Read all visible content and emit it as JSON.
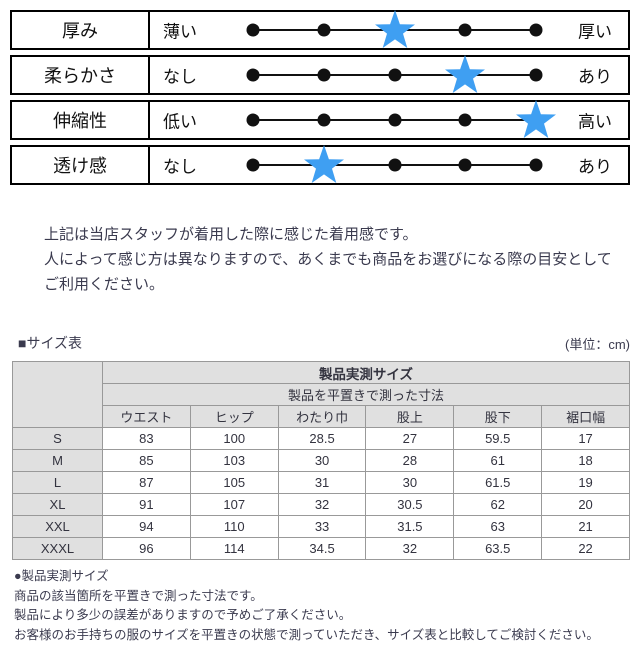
{
  "feel_chart": {
    "scale_points": 5,
    "star_color": "#3f9ff2",
    "dot_color": "#111111",
    "rows": [
      {
        "label": "厚み",
        "low": "薄い",
        "high": "厚い",
        "star": 3
      },
      {
        "label": "柔らかさ",
        "low": "なし",
        "high": "あり",
        "star": 4
      },
      {
        "label": "伸縮性",
        "low": "低い",
        "high": "高い",
        "star": 5
      },
      {
        "label": "透け感",
        "low": "なし",
        "high": "あり",
        "star": 2
      }
    ]
  },
  "description": {
    "lines": [
      "上記は当店スタッフが着用した際に感じた着用感です。",
      "人によって感じ方は異なりますので、あくまでも商品をお選びになる際の目安として",
      "ご利用ください。"
    ]
  },
  "size_section": {
    "title": "■サイズ表",
    "unit": "(単位：cm)",
    "table": {
      "header_main": "製品実測サイズ",
      "header_sub": "製品を平置きで測った寸法",
      "columns": [
        "ウエスト",
        "ヒップ",
        "わたり巾",
        "股上",
        "股下",
        "裾口幅"
      ],
      "rows": [
        {
          "size": "S",
          "values": [
            "83",
            "100",
            "28.5",
            "27",
            "59.5",
            "17"
          ]
        },
        {
          "size": "M",
          "values": [
            "85",
            "103",
            "30",
            "28",
            "61",
            "18"
          ]
        },
        {
          "size": "L",
          "values": [
            "87",
            "105",
            "31",
            "30",
            "61.5",
            "19"
          ]
        },
        {
          "size": "XL",
          "values": [
            "91",
            "107",
            "32",
            "30.5",
            "62",
            "20"
          ]
        },
        {
          "size": "XXL",
          "values": [
            "94",
            "110",
            "33",
            "31.5",
            "63",
            "21"
          ]
        },
        {
          "size": "XXXL",
          "values": [
            "96",
            "114",
            "34.5",
            "32",
            "63.5",
            "22"
          ]
        }
      ]
    }
  },
  "notes": {
    "lines": [
      "●製品実測サイズ",
      "商品の該当箇所を平置きで測った寸法です。",
      "製品により多少の誤差がありますので予めご了承ください。",
      "お客様のお手持ちの服のサイズを平置きの状態で測っていただき、サイズ表と比較してご検討ください。"
    ]
  }
}
